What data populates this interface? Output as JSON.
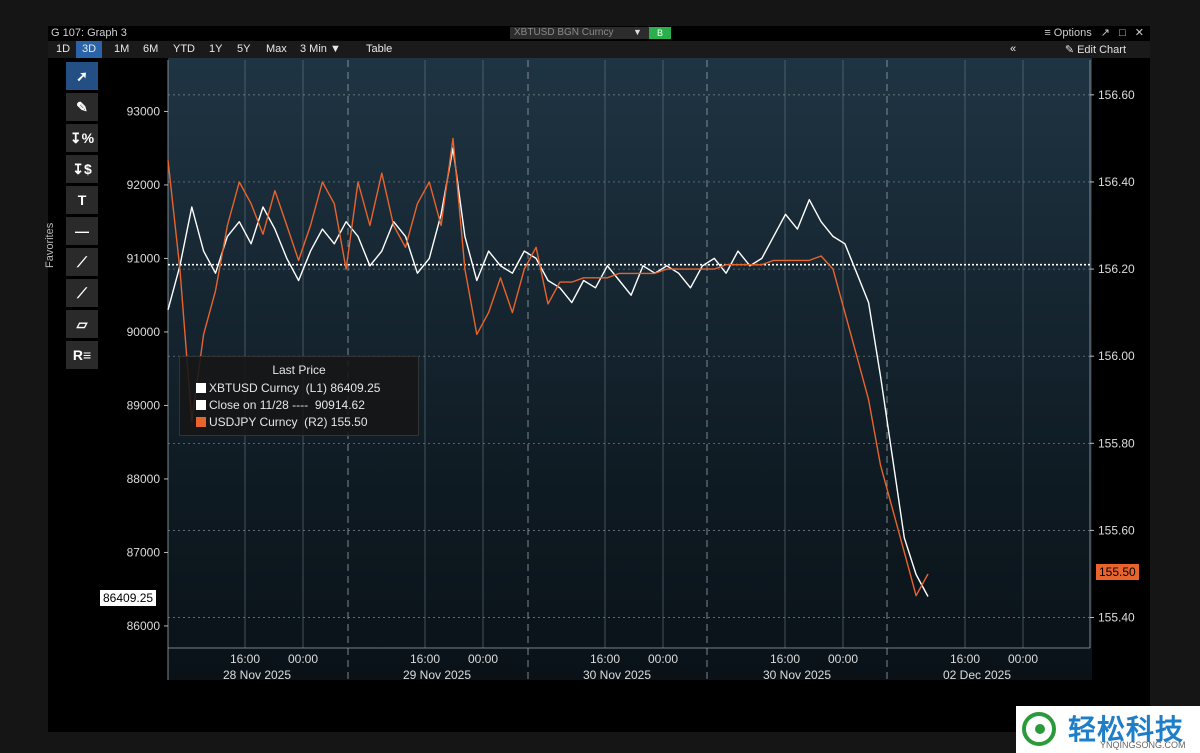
{
  "window": {
    "title": "G 107: Graph 3",
    "ticker": "XBTUSD BGN Curncy",
    "badge": "B",
    "options_label": "≡ Options",
    "controls": [
      "↗",
      "□",
      "✕"
    ]
  },
  "toolbar": {
    "ranges": [
      "1D",
      "3D",
      "1M",
      "6M",
      "YTD",
      "1Y",
      "5Y",
      "Max",
      "3 Min ▼",
      "Table"
    ],
    "active_range": "3D",
    "collapse": "«",
    "edit_chart": "✎ Edit Chart"
  },
  "sidebar": {
    "favorites_label": "Favorites",
    "tools": [
      {
        "icon": "arrow-select-icon",
        "glyph": "➚"
      },
      {
        "icon": "pencil-icon",
        "glyph": "✎"
      },
      {
        "icon": "percent-icon",
        "glyph": "↧%"
      },
      {
        "icon": "dollar-icon",
        "glyph": "↧$"
      },
      {
        "icon": "text-tool-icon",
        "glyph": "T"
      },
      {
        "icon": "horizontal-line-icon",
        "glyph": "—"
      },
      {
        "icon": "trend-line-icon",
        "glyph": "⟋"
      },
      {
        "icon": "ray-line-icon",
        "glyph": "⟋"
      },
      {
        "icon": "channel-icon",
        "glyph": "▱"
      },
      {
        "icon": "r-list-icon",
        "glyph": "R≡"
      }
    ]
  },
  "legend": {
    "header": "Last Price",
    "rows": [
      {
        "text": "XBTUSD Curncy  (L1) 86409.25",
        "color": "#ffffff"
      },
      {
        "text": "Close on 11/28 ----  90914.62",
        "color": "#ffffff"
      },
      {
        "text": "USDJPY Curncy  (R2) 155.50",
        "color": "#e8642c"
      }
    ]
  },
  "last_labels": {
    "left": "86409.25",
    "right": "155.50"
  },
  "logo": {
    "cn": "轻松科技",
    "en": "YNQINGSONG.COM"
  },
  "chart_data": {
    "type": "line",
    "left_axis": {
      "ticks": [
        86000,
        87000,
        88000,
        89000,
        90000,
        91000,
        92000,
        93000
      ],
      "labels": [
        "86000",
        "87000",
        "88000",
        "89000",
        "90000",
        "91000",
        "92000",
        "93000"
      ],
      "ylim": [
        85700,
        93700
      ]
    },
    "right_axis": {
      "ticks": [
        155.4,
        155.6,
        155.8,
        156.0,
        156.2,
        156.4,
        156.6
      ],
      "labels": [
        "155.40",
        "155.60",
        "155.80",
        "156.00",
        "156.20",
        "156.40",
        "156.60"
      ],
      "ylim": [
        155.33,
        156.68
      ]
    },
    "x_ticks": [
      {
        "label": "16:00",
        "sub": "28 Nov 2025"
      },
      {
        "label": "00:00",
        "sub": ""
      },
      {
        "label": "16:00",
        "sub": "29 Nov 2025"
      },
      {
        "label": "00:00",
        "sub": ""
      },
      {
        "label": "16:00",
        "sub": "30 Nov 2025"
      },
      {
        "label": "00:00",
        "sub": ""
      },
      {
        "label": "16:00",
        "sub": "30 Nov 2025"
      },
      {
        "label": "00:00",
        "sub": ""
      },
      {
        "label": "16:00",
        "sub": "02 Dec 2025"
      },
      {
        "label": "00:00",
        "sub": ""
      }
    ],
    "reference_line": {
      "name": "Close on 11/28",
      "value": 90914.62
    },
    "series": [
      {
        "name": "XBTUSD Curncy",
        "axis": "left",
        "color": "#ffffff",
        "values": [
          90300,
          90900,
          91700,
          91100,
          90800,
          91300,
          91500,
          91200,
          91700,
          91400,
          91000,
          90700,
          91100,
          91400,
          91200,
          91500,
          91300,
          90900,
          91100,
          91500,
          91300,
          90800,
          91000,
          91600,
          92500,
          91300,
          90700,
          91100,
          90900,
          90800,
          91100,
          91000,
          90700,
          90600,
          90400,
          90700,
          90600,
          90900,
          90700,
          90500,
          90900,
          90800,
          90900,
          90800,
          90600,
          90900,
          91000,
          90800,
          91100,
          90900,
          91000,
          91300,
          91600,
          91400,
          91800,
          91500,
          91300,
          91200,
          90800,
          90400,
          89400,
          88300,
          87200,
          86700,
          86400
        ]
      },
      {
        "name": "USDJPY Curncy",
        "axis": "right",
        "color": "#e8642c",
        "values": [
          156.45,
          156.2,
          155.85,
          156.05,
          156.15,
          156.3,
          156.4,
          156.35,
          156.28,
          156.38,
          156.3,
          156.22,
          156.3,
          156.4,
          156.35,
          156.2,
          156.4,
          156.3,
          156.42,
          156.3,
          156.25,
          156.35,
          156.4,
          156.3,
          156.5,
          156.2,
          156.05,
          156.1,
          156.18,
          156.1,
          156.2,
          156.25,
          156.12,
          156.17,
          156.17,
          156.18,
          156.18,
          156.18,
          156.19,
          156.19,
          156.19,
          156.19,
          156.2,
          156.2,
          156.2,
          156.2,
          156.2,
          156.21,
          156.21,
          156.21,
          156.21,
          156.22,
          156.22,
          156.22,
          156.22,
          156.23,
          156.2,
          156.1,
          156.0,
          155.9,
          155.75,
          155.65,
          155.55,
          155.45,
          155.5
        ]
      }
    ]
  }
}
